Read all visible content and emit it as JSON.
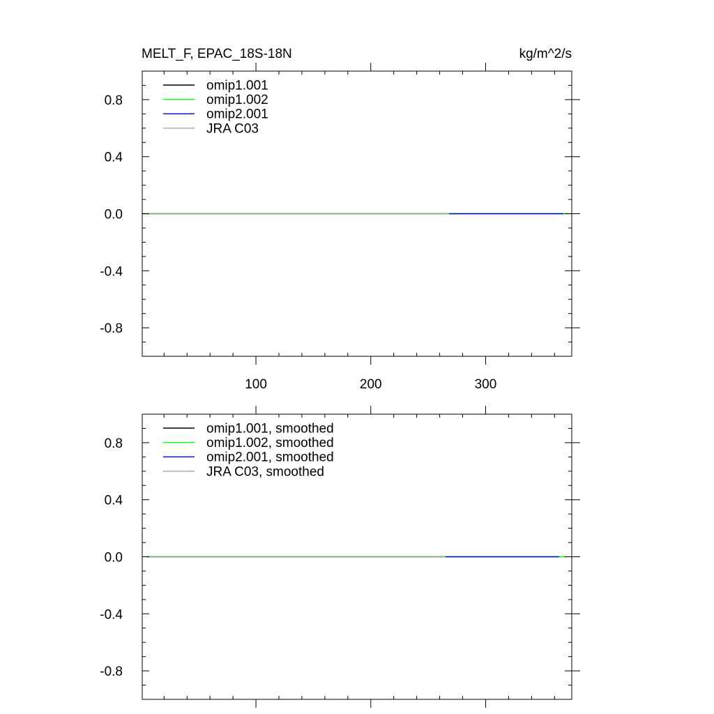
{
  "header": {
    "title": "MELT_F, EPAC_18S-18N",
    "units": "kg/m^2/s"
  },
  "chart_data": [
    {
      "type": "line",
      "panel": "top",
      "xlim": [
        1,
        375
      ],
      "ylim": [
        -1,
        1
      ],
      "xticks": [
        100,
        200,
        300
      ],
      "xtick_labels": [
        "100",
        "200",
        "300"
      ],
      "yticks": [
        -0.8,
        -0.4,
        0.0,
        0.4,
        0.8
      ],
      "ytick_labels": [
        "-0.8",
        "-0.4",
        "0.0",
        "0.4",
        "0.8"
      ],
      "legend_position": "top-left",
      "series": [
        {
          "name": "omip1.001",
          "color": "#000000",
          "x": [
            1,
            267
          ],
          "y": [
            0,
            0
          ]
        },
        {
          "name": "omip1.002",
          "color": "#00ff00",
          "x": [
            1,
            375
          ],
          "y": [
            0,
            0
          ]
        },
        {
          "name": "omip2.001",
          "color": "#0000cc",
          "x": [
            268,
            368
          ],
          "y": [
            0,
            0
          ]
        },
        {
          "name": "JRA C03",
          "color": "#a6a6a6",
          "x": [
            1,
            267
          ],
          "y": [
            0,
            0
          ]
        }
      ]
    },
    {
      "type": "line",
      "panel": "bottom",
      "xlim": [
        1,
        375
      ],
      "ylim": [
        -1,
        1
      ],
      "xticks": [
        100,
        200,
        300
      ],
      "yticks": [
        -0.8,
        -0.4,
        0.0,
        0.4,
        0.8
      ],
      "ytick_labels": [
        "-0.8",
        "-0.4",
        "0.0",
        "0.4",
        "0.8"
      ],
      "legend_position": "top-left",
      "series": [
        {
          "name": "omip1.001, smoothed",
          "color": "#000000",
          "x": [
            5,
            264
          ],
          "y": [
            0,
            0
          ]
        },
        {
          "name": "omip1.002, smoothed",
          "color": "#00ff00",
          "x": [
            5,
            371
          ],
          "y": [
            0,
            0
          ]
        },
        {
          "name": "omip2.001, smoothed",
          "color": "#0000cc",
          "x": [
            265,
            364
          ],
          "y": [
            0,
            0
          ]
        },
        {
          "name": "JRA C03, smoothed",
          "color": "#a6a6a6",
          "x": [
            5,
            264
          ],
          "y": [
            0,
            0
          ]
        }
      ]
    }
  ]
}
